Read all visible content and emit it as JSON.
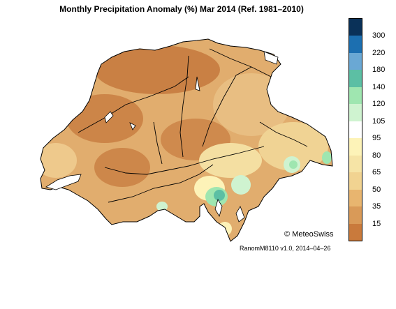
{
  "title": "Monthly Precipitation Anomaly (%) Mar 2014  (Ref. 1981–2010)",
  "legend": {
    "bins": [
      {
        "color": "#0a3158"
      },
      {
        "color": "#1c6fb0",
        "label": "300"
      },
      {
        "color": "#6aa8d4",
        "label": "220"
      },
      {
        "color": "#5cbfa4",
        "label": "180"
      },
      {
        "color": "#9fe6b0",
        "label": "140"
      },
      {
        "color": "#cff3d0",
        "label": "120"
      },
      {
        "color": "#ffffff",
        "label": "105"
      },
      {
        "color": "#fdf3b8",
        "label": "95"
      },
      {
        "color": "#f6e4a6",
        "label": "80"
      },
      {
        "color": "#f1d391",
        "label": "65"
      },
      {
        "color": "#e8b56f",
        "label": "50"
      },
      {
        "color": "#d99a58",
        "label": "35"
      },
      {
        "color": "#c97a3c",
        "label": "15"
      }
    ]
  },
  "copyright": "© MeteoSwiss",
  "product": "RanomM8110 v1.0, 2014–04–26"
}
